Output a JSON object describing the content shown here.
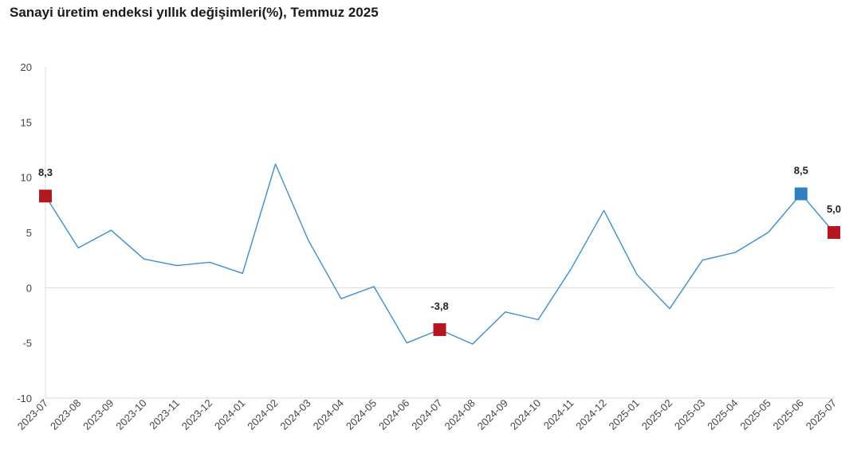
{
  "chart_data": {
    "type": "line",
    "title": "Sanayi üretim endeksi yıllık değişimleri(%), Temmuz 2025",
    "categories": [
      "2023-07",
      "2023-08",
      "2023-09",
      "2023-10",
      "2023-11",
      "2023-12",
      "2024-01",
      "2024-02",
      "2024-03",
      "2024-04",
      "2024-05",
      "2024-06",
      "2024-07",
      "2024-08",
      "2024-09",
      "2024-10",
      "2024-11",
      "2024-12",
      "2025-01",
      "2025-02",
      "2025-03",
      "2025-04",
      "2025-05",
      "2025-06",
      "2025-07"
    ],
    "series": [
      {
        "values": [
          8.3,
          3.6,
          5.2,
          2.6,
          2.0,
          2.3,
          1.3,
          11.2,
          4.3,
          -1.0,
          0.1,
          -5.0,
          -3.8,
          -5.1,
          -2.2,
          -2.9,
          1.7,
          7.0,
          1.2,
          -1.9,
          2.5,
          3.2,
          5.0,
          8.5,
          5.0
        ]
      }
    ],
    "highlights": [
      {
        "category": "2023-07",
        "value": 8.3,
        "label": "8,3",
        "color": "#b5171f"
      },
      {
        "category": "2024-07",
        "value": -3.8,
        "label": "-3,8",
        "color": "#b5171f"
      },
      {
        "category": "2025-06",
        "value": 8.5,
        "label": "8,5",
        "color": "#2f7fbf"
      },
      {
        "category": "2025-07",
        "value": 5.0,
        "label": "5,0",
        "color": "#b5171f"
      }
    ],
    "ylim": [
      -10,
      20
    ],
    "yticks": [
      -10,
      -5,
      0,
      5,
      10,
      15,
      20
    ],
    "ytick_labels": [
      "-10",
      "-5",
      "0",
      "5",
      "10",
      "15",
      "20"
    ],
    "xlabel": "",
    "ylabel": "",
    "grid": false,
    "legend": "none",
    "line_color": "#3b8fd1"
  }
}
